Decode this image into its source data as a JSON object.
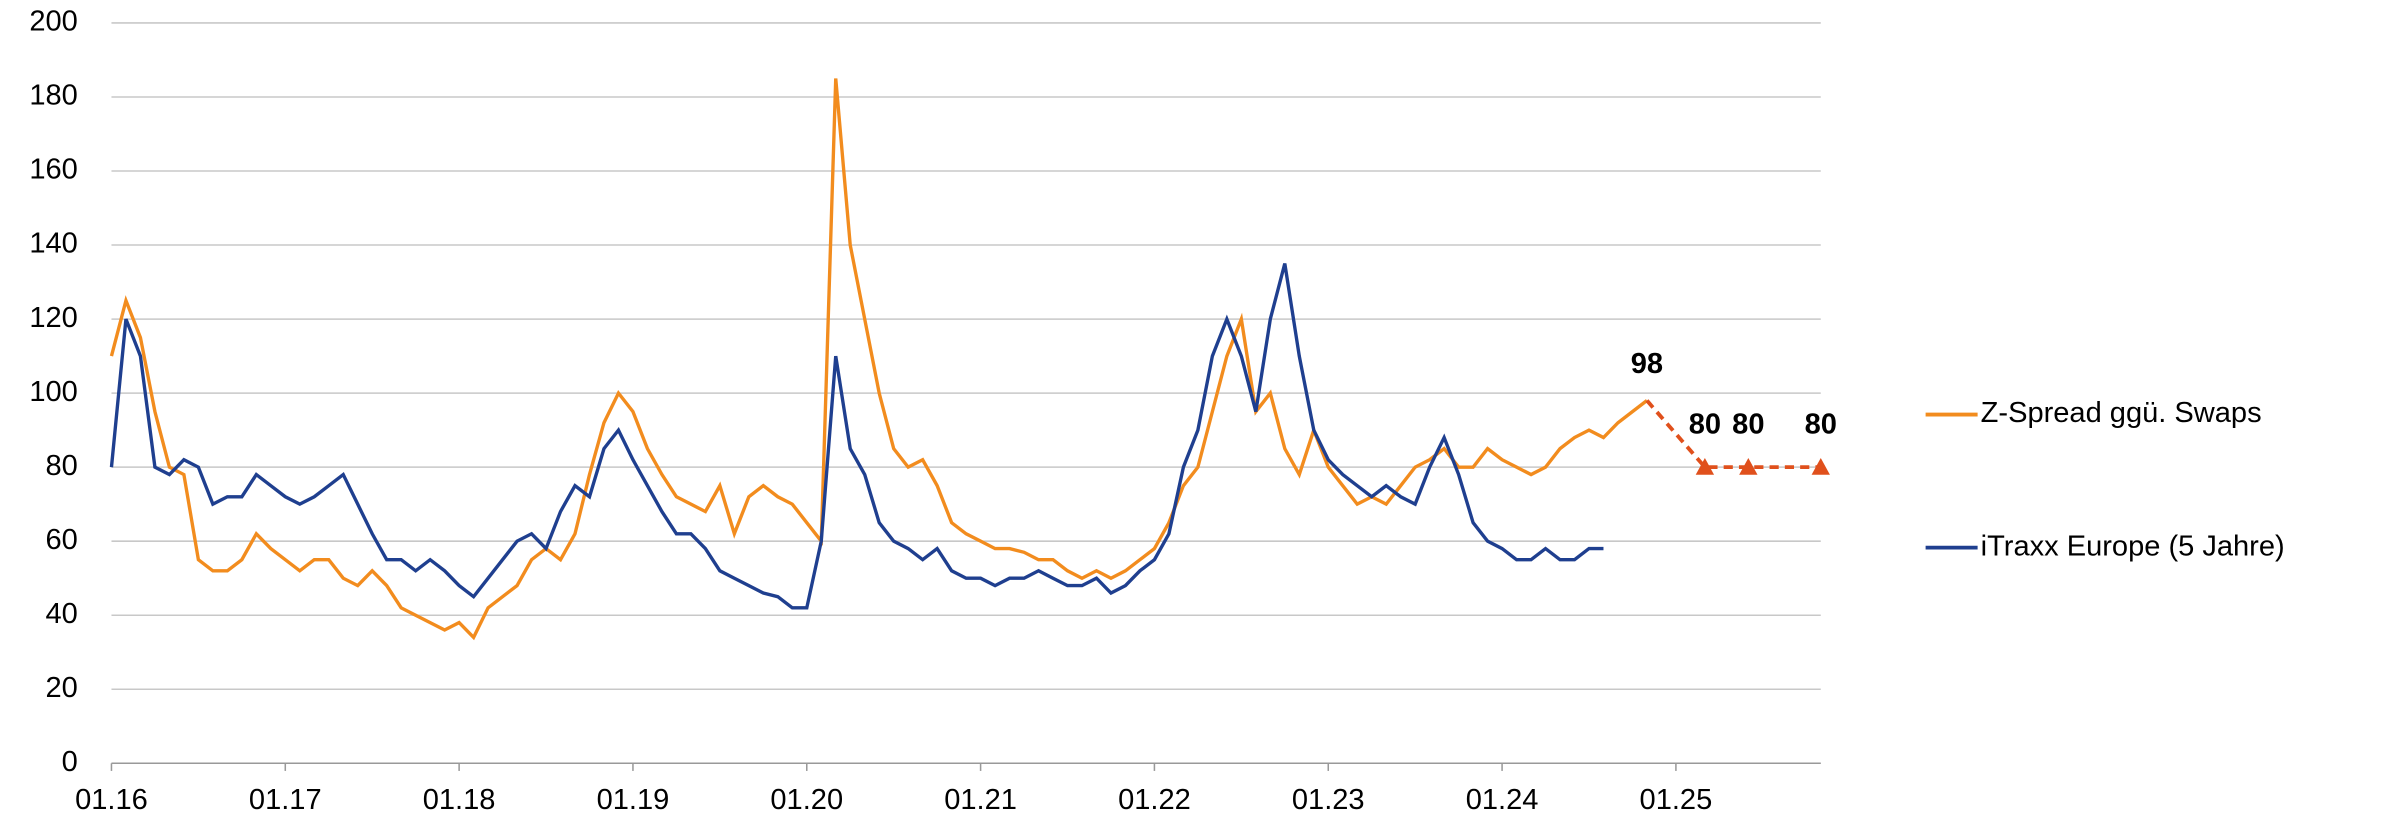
{
  "chart_data": {
    "type": "line",
    "x": [
      "01.16",
      "02.16",
      "03.16",
      "04.16",
      "05.16",
      "06.16",
      "07.16",
      "08.16",
      "09.16",
      "10.16",
      "11.16",
      "12.16",
      "01.17",
      "02.17",
      "03.17",
      "04.17",
      "05.17",
      "06.17",
      "07.17",
      "08.17",
      "09.17",
      "10.17",
      "11.17",
      "12.17",
      "01.18",
      "02.18",
      "03.18",
      "04.18",
      "05.18",
      "06.18",
      "07.18",
      "08.18",
      "09.18",
      "10.18",
      "11.18",
      "12.18",
      "01.19",
      "02.19",
      "03.19",
      "04.19",
      "05.19",
      "06.19",
      "07.19",
      "08.19",
      "09.19",
      "10.19",
      "11.19",
      "12.19",
      "01.20",
      "02.20",
      "03.20",
      "04.20",
      "05.20",
      "06.20",
      "07.20",
      "08.20",
      "09.20",
      "10.20",
      "11.20",
      "12.20",
      "01.21",
      "02.21",
      "03.21",
      "04.21",
      "05.21",
      "06.21",
      "07.21",
      "08.21",
      "09.21",
      "10.21",
      "11.21",
      "12.21",
      "01.22",
      "02.22",
      "03.22",
      "04.22",
      "05.22",
      "06.22",
      "07.22",
      "08.22",
      "09.22",
      "10.22",
      "11.22",
      "12.22",
      "01.23",
      "02.23",
      "03.23",
      "04.23",
      "05.23",
      "06.23",
      "07.23",
      "08.23",
      "09.23",
      "10.23",
      "11.23",
      "12.23",
      "01.24",
      "02.24",
      "03.24",
      "04.24",
      "05.24",
      "06.24",
      "07.24",
      "08.24",
      "09.24",
      "10.24",
      "11.24"
    ],
    "series": [
      {
        "name": "Z-Spread ggü. Swaps",
        "color": "#f28c1e",
        "values": [
          110,
          125,
          115,
          95,
          80,
          78,
          55,
          52,
          52,
          55,
          62,
          58,
          55,
          52,
          55,
          55,
          50,
          48,
          52,
          48,
          42,
          40,
          38,
          36,
          38,
          34,
          42,
          45,
          48,
          55,
          58,
          55,
          62,
          78,
          92,
          100,
          95,
          85,
          78,
          72,
          70,
          68,
          75,
          62,
          72,
          75,
          72,
          70,
          65,
          60,
          185,
          140,
          120,
          100,
          85,
          80,
          82,
          75,
          65,
          62,
          60,
          58,
          58,
          57,
          55,
          55,
          52,
          50,
          52,
          50,
          52,
          55,
          58,
          65,
          75,
          80,
          95,
          110,
          120,
          95,
          100,
          85,
          78,
          90,
          80,
          75,
          70,
          72,
          70,
          75,
          80,
          82,
          85,
          80,
          80,
          85,
          82,
          80,
          78,
          80,
          85,
          88,
          90,
          88,
          92,
          95,
          98
        ]
      },
      {
        "name": "iTraxx Europe (5 Jahre)",
        "color": "#1f3f8f",
        "values": [
          80,
          120,
          110,
          80,
          78,
          82,
          80,
          70,
          72,
          72,
          78,
          75,
          72,
          70,
          72,
          75,
          78,
          70,
          62,
          55,
          55,
          52,
          55,
          52,
          48,
          45,
          50,
          55,
          60,
          62,
          58,
          68,
          75,
          72,
          85,
          90,
          82,
          75,
          68,
          62,
          62,
          58,
          52,
          50,
          48,
          46,
          45,
          42,
          42,
          60,
          110,
          85,
          78,
          65,
          60,
          58,
          55,
          58,
          52,
          50,
          50,
          48,
          50,
          50,
          52,
          50,
          48,
          48,
          50,
          46,
          48,
          52,
          55,
          62,
          80,
          90,
          110,
          120,
          110,
          95,
          120,
          135,
          110,
          90,
          82,
          78,
          75,
          72,
          75,
          72,
          70,
          80,
          88,
          78,
          65,
          60,
          58,
          55,
          55,
          58,
          55,
          55,
          58,
          58,
          null,
          null,
          null
        ]
      },
      {
        "color": "#e0501c",
        "x": [
          "11.24",
          "03.25",
          "06.25",
          "11.25"
        ],
        "values": [
          98,
          80,
          80,
          80
        ],
        "dashed": true
      }
    ],
    "xlim": [
      "01.16",
      "11.25"
    ],
    "xticks": [
      "01.16",
      "01.17",
      "01.18",
      "01.19",
      "01.20",
      "01.21",
      "01.22",
      "01.23",
      "01.24",
      "01.25"
    ],
    "ylim": [
      0,
      200
    ],
    "yticks": [
      0,
      20,
      40,
      60,
      80,
      100,
      120,
      140,
      160,
      180,
      200
    ],
    "grid": true,
    "legend": "right"
  }
}
